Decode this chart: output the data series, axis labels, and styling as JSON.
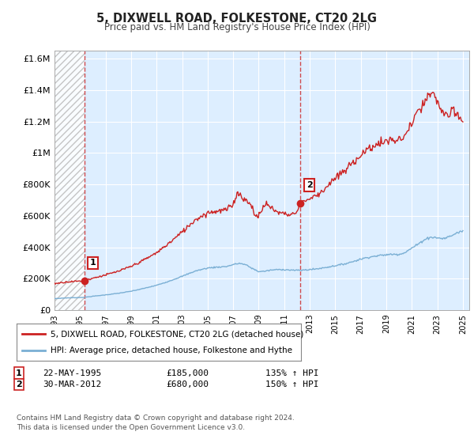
{
  "title": "5, DIXWELL ROAD, FOLKESTONE, CT20 2LG",
  "subtitle": "Price paid vs. HM Land Registry's House Price Index (HPI)",
  "legend_line1": "5, DIXWELL ROAD, FOLKESTONE, CT20 2LG (detached house)",
  "legend_line2": "HPI: Average price, detached house, Folkestone and Hythe",
  "footnote1": "Contains HM Land Registry data © Crown copyright and database right 2024.",
  "footnote2": "This data is licensed under the Open Government Licence v3.0.",
  "sale1_year": 1995.38,
  "sale1_price": 185000,
  "sale1_date": "22-MAY-1995",
  "sale2_year": 2012.24,
  "sale2_price": 680000,
  "sale2_date": "30-MAR-2012",
  "red_color": "#cc2222",
  "blue_color": "#7aafd4",
  "background_color": "#ffffff",
  "plot_bg_color": "#ddeeff",
  "grid_color": "#ffffff",
  "hatch_color": "#bbbbbb",
  "ylim": [
    0,
    1650000
  ],
  "xlim_start": 1993.0,
  "xlim_end": 2025.5
}
